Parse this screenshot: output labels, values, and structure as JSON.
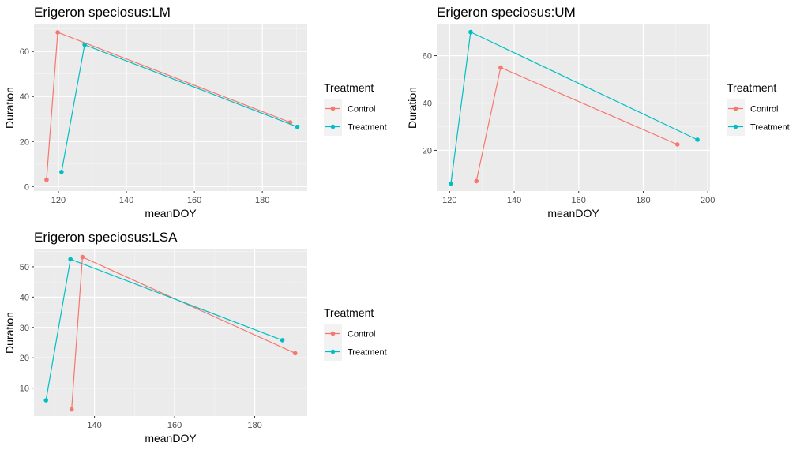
{
  "legend": {
    "title": "Treatment",
    "entries": [
      {
        "name": "Control",
        "color": "#F8766D"
      },
      {
        "name": "Treatment",
        "color": "#00BFC4"
      }
    ]
  },
  "chart_data": [
    {
      "type": "line",
      "title": "Erigeron speciosus:LM",
      "xlabel": "meanDOY",
      "ylabel": "Duration",
      "xlim": [
        112.8,
        193.2
      ],
      "ylim": [
        -2,
        72
      ],
      "xticks": [
        120,
        140,
        160,
        180
      ],
      "yticks": [
        0,
        20,
        40,
        60
      ],
      "grid": true,
      "legend_position": "right",
      "series": [
        {
          "name": "Control",
          "color": "#F8766D",
          "points": [
            [
              116.5,
              3
            ],
            [
              119.8,
              68.5
            ],
            [
              188.2,
              28.5
            ]
          ]
        },
        {
          "name": "Treatment",
          "color": "#00BFC4",
          "points": [
            [
              120.9,
              6.5
            ],
            [
              127.7,
              63
            ],
            [
              190.3,
              26.5
            ]
          ]
        }
      ]
    },
    {
      "type": "line",
      "title": "Erigeron speciosus:UM",
      "xlabel": "meanDOY",
      "ylabel": "Duration",
      "xlim": [
        116.0,
        200.7
      ],
      "ylim": [
        2.8,
        73.2
      ],
      "xticks": [
        120,
        140,
        160,
        180,
        200
      ],
      "yticks": [
        20,
        40,
        60
      ],
      "grid": true,
      "legend_position": "right",
      "series": [
        {
          "name": "Control",
          "color": "#F8766D",
          "points": [
            [
              128.3,
              7
            ],
            [
              135.8,
              55
            ],
            [
              190.6,
              22.5
            ]
          ]
        },
        {
          "name": "Treatment",
          "color": "#00BFC4",
          "points": [
            [
              120.4,
              6
            ],
            [
              126.5,
              70
            ],
            [
              196.8,
              24.5
            ]
          ]
        }
      ]
    },
    {
      "type": "line",
      "title": "Erigeron speciosus:LSA",
      "xlabel": "meanDOY",
      "ylabel": "Duration",
      "xlim": [
        124.9,
        193.1
      ],
      "ylim": [
        0.8,
        55.7
      ],
      "xticks": [
        140,
        160,
        180
      ],
      "yticks": [
        10,
        20,
        30,
        40,
        50
      ],
      "grid": true,
      "legend_position": "right",
      "series": [
        {
          "name": "Control",
          "color": "#F8766D",
          "points": [
            [
              134.3,
              3
            ],
            [
              137.0,
              53.2
            ],
            [
              190.1,
              21.5
            ]
          ]
        },
        {
          "name": "Treatment",
          "color": "#00BFC4",
          "points": [
            [
              127.9,
              6
            ],
            [
              134.0,
              52.5
            ],
            [
              186.9,
              25.8
            ]
          ]
        }
      ]
    }
  ]
}
